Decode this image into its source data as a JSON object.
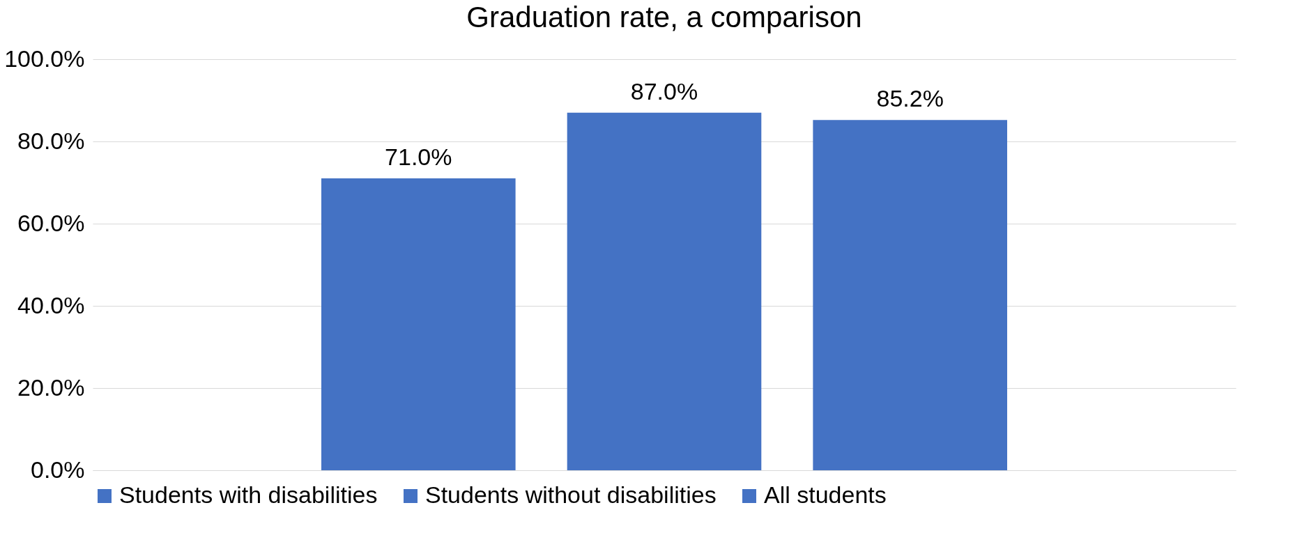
{
  "chart_data": {
    "type": "bar",
    "title": "Graduation rate, a comparison",
    "categories": [
      null
    ],
    "series": [
      {
        "name": "Students with disabilities",
        "color": "#4472c4",
        "values": [
          71.0
        ],
        "value_labels": [
          "71.0%"
        ]
      },
      {
        "name": "Students without disabilities",
        "color": "#4472c4",
        "values": [
          87.0
        ],
        "value_labels": [
          "87.0%"
        ]
      },
      {
        "name": "All students",
        "color": "#4472c4",
        "values": [
          85.2
        ],
        "value_labels": [
          "85.2%"
        ]
      }
    ],
    "ylim": [
      0,
      100
    ],
    "yticks": [
      {
        "value": 0,
        "label": "0.0%"
      },
      {
        "value": 20,
        "label": "20.0%"
      },
      {
        "value": 40,
        "label": "40.0%"
      },
      {
        "value": 60,
        "label": "60.0%"
      },
      {
        "value": 80,
        "label": "80.0%"
      },
      {
        "value": 100,
        "label": "100.0%"
      }
    ],
    "grid": "y",
    "legend": "bottom"
  }
}
